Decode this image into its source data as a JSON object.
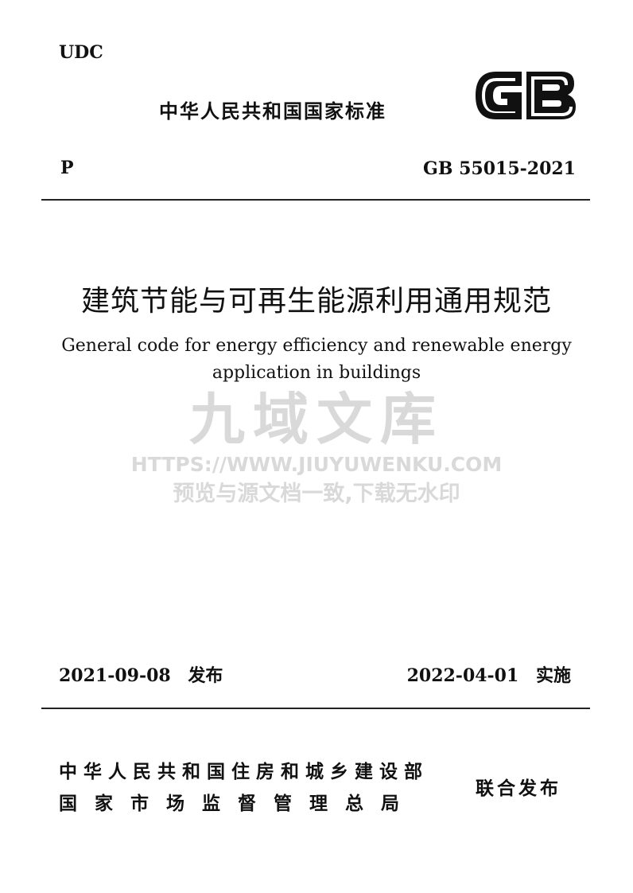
{
  "header": {
    "udc": "UDC",
    "standard_type": "中华人民共和国国家标准",
    "logo_text": "GB",
    "classification": "P",
    "code": "GB 55015-2021"
  },
  "title": {
    "chinese": "建筑节能与可再生能源利用通用规范",
    "english_line1": "General code for energy efficiency and renewable energy",
    "english_line2": "application in buildings"
  },
  "watermark": {
    "brand": "九域文库",
    "url": "HTTPS://WWW.JIUYUWENKU.COM",
    "note": "预览与源文档一致,下载无水印"
  },
  "dates": {
    "issue_date": "2021-09-08",
    "issue_label": "发布",
    "effective_date": "2022-04-01",
    "effective_label": "实施"
  },
  "issuers": {
    "line1": "中华人民共和国住房和城乡建设部",
    "line2": "国家市场监督管理总局",
    "joint_label": "联合发布"
  }
}
